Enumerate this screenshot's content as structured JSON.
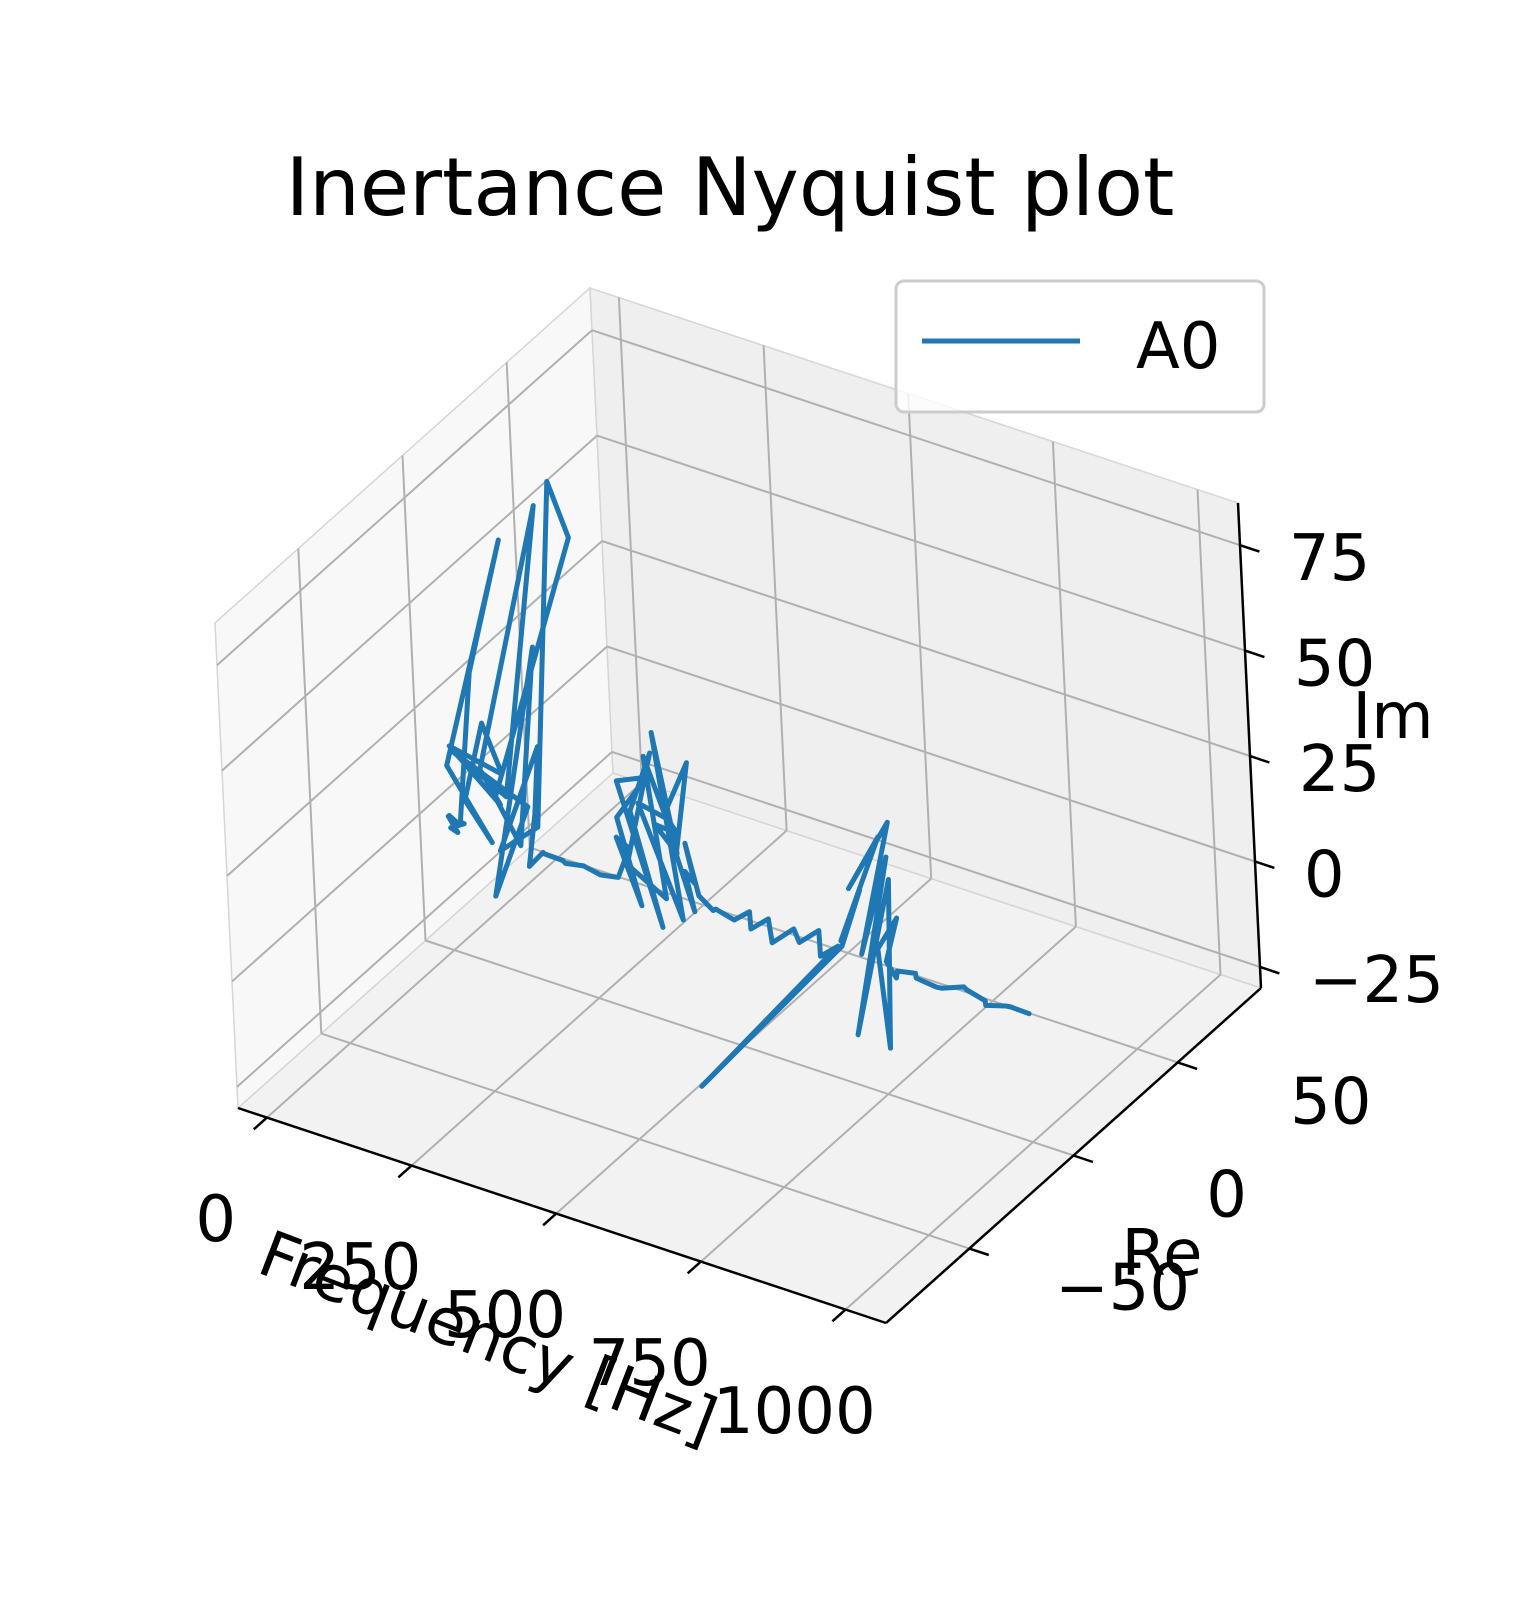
{
  "chart_data": {
    "type": "line",
    "projection": "3d",
    "title": "Inertance Nyquist plot",
    "xlabel": "Frequency [Hz]",
    "ylabel": "Re",
    "zlabel": "Im",
    "xlim": [
      -50,
      1070
    ],
    "ylim": [
      -90,
      90
    ],
    "zlim": [
      -30,
      85
    ],
    "xticks": [
      0,
      250,
      500,
      750,
      1000
    ],
    "yticks": [
      -50,
      0,
      50
    ],
    "zticks": [
      -25,
      0,
      25,
      50,
      75
    ],
    "xtick_labels": [
      "0",
      "250",
      "500",
      "750",
      "1000"
    ],
    "ytick_labels": [
      "−50",
      "0",
      "50"
    ],
    "ztick_labels": [
      "−25",
      "0",
      "25",
      "50",
      "75"
    ],
    "grid": true,
    "legend": {
      "position": "top-right",
      "entries": [
        "A0"
      ]
    },
    "series": [
      {
        "name": "A0",
        "color": "#1f77b4",
        "points": [
          [
            2,
            0,
            2
          ],
          [
            5,
            3,
            -1
          ],
          [
            8,
            -2,
            3
          ],
          [
            12,
            1,
            -2
          ],
          [
            15,
            -3,
            1
          ],
          [
            20,
            2,
            0
          ],
          [
            25,
            -1,
            2
          ],
          [
            30,
            5,
            35
          ],
          [
            35,
            20,
            60
          ],
          [
            40,
            -10,
            20
          ],
          [
            45,
            8,
            -6
          ],
          [
            50,
            -5,
            10
          ],
          [
            55,
            3,
            25
          ],
          [
            60,
            10,
            10
          ],
          [
            65,
            -15,
            28
          ],
          [
            70,
            6,
            5
          ],
          [
            75,
            -4,
            18
          ],
          [
            80,
            25,
            68
          ],
          [
            85,
            5,
            8
          ],
          [
            90,
            -20,
            30
          ],
          [
            95,
            12,
            3
          ],
          [
            100,
            -6,
            -10
          ],
          [
            105,
            15,
            40
          ],
          [
            110,
            4,
            -2
          ],
          [
            115,
            -8,
            15
          ],
          [
            120,
            30,
            60
          ],
          [
            125,
            20,
            78
          ],
          [
            130,
            7,
            2
          ],
          [
            135,
            -12,
            5
          ],
          [
            140,
            6,
            22
          ],
          [
            145,
            2,
            8
          ],
          [
            150,
            -3,
            -2
          ],
          [
            160,
            1,
            0
          ],
          [
            170,
            -1,
            1
          ],
          [
            190,
            2,
            -1
          ],
          [
            210,
            -2,
            1
          ],
          [
            230,
            1,
            0
          ],
          [
            250,
            3,
            -2
          ],
          [
            270,
            -2,
            1
          ],
          [
            290,
            1,
            0
          ],
          [
            300,
            4,
            6
          ],
          [
            305,
            -3,
            12
          ],
          [
            310,
            6,
            -8
          ],
          [
            315,
            -5,
            18
          ],
          [
            320,
            8,
            22
          ],
          [
            325,
            -7,
            28
          ],
          [
            330,
            10,
            -14
          ],
          [
            335,
            -4,
            20
          ],
          [
            340,
            5,
            30
          ],
          [
            345,
            -9,
            10
          ],
          [
            350,
            7,
            -5
          ],
          [
            355,
            -2,
            33
          ],
          [
            360,
            6,
            15
          ],
          [
            365,
            -8,
            25
          ],
          [
            370,
            9,
            -10
          ],
          [
            375,
            -3,
            40
          ],
          [
            380,
            5,
            8
          ],
          [
            385,
            -6,
            20
          ],
          [
            390,
            3,
            14
          ],
          [
            395,
            -4,
            22
          ],
          [
            400,
            6,
            30
          ],
          [
            405,
            -2,
            12
          ],
          [
            410,
            4,
            -4
          ],
          [
            415,
            -1,
            8
          ],
          [
            420,
            2,
            4
          ],
          [
            425,
            -3,
            16
          ],
          [
            430,
            1,
            2
          ],
          [
            440,
            -1,
            3
          ],
          [
            450,
            2,
            -1
          ],
          [
            470,
            -2,
            2
          ],
          [
            490,
            1,
            -1
          ],
          [
            510,
            3,
            1
          ],
          [
            530,
            -2,
            0
          ],
          [
            550,
            1,
            2
          ],
          [
            570,
            -3,
            -1
          ],
          [
            590,
            2,
            1
          ],
          [
            610,
            -1,
            0
          ],
          [
            630,
            3,
            2
          ],
          [
            650,
            -2,
            -1
          ],
          [
            670,
            1,
            1
          ],
          [
            690,
            -70,
            0
          ],
          [
            700,
            -5,
            5
          ],
          [
            705,
            3,
            15
          ],
          [
            710,
            -8,
            8
          ],
          [
            715,
            10,
            25
          ],
          [
            720,
            -6,
            20
          ],
          [
            725,
            12,
            28
          ],
          [
            730,
            -4,
            4
          ],
          [
            735,
            8,
            22
          ],
          [
            740,
            -10,
            -12
          ],
          [
            745,
            6,
            18
          ],
          [
            750,
            2,
            -20
          ],
          [
            755,
            -3,
            6
          ],
          [
            760,
            5,
            10
          ],
          [
            765,
            -2,
            3
          ],
          [
            770,
            1,
            -2
          ],
          [
            780,
            -1,
            1
          ],
          [
            800,
            2,
            0
          ],
          [
            820,
            -3,
            2
          ],
          [
            840,
            1,
            -1
          ],
          [
            860,
            -2,
            1
          ],
          [
            880,
            3,
            0
          ],
          [
            900,
            -1,
            2
          ],
          [
            920,
            2,
            -1
          ],
          [
            940,
            -3,
            1
          ],
          [
            960,
            1,
            0
          ],
          [
            980,
            -2,
            2
          ],
          [
            1000,
            1,
            0
          ]
        ]
      }
    ]
  }
}
